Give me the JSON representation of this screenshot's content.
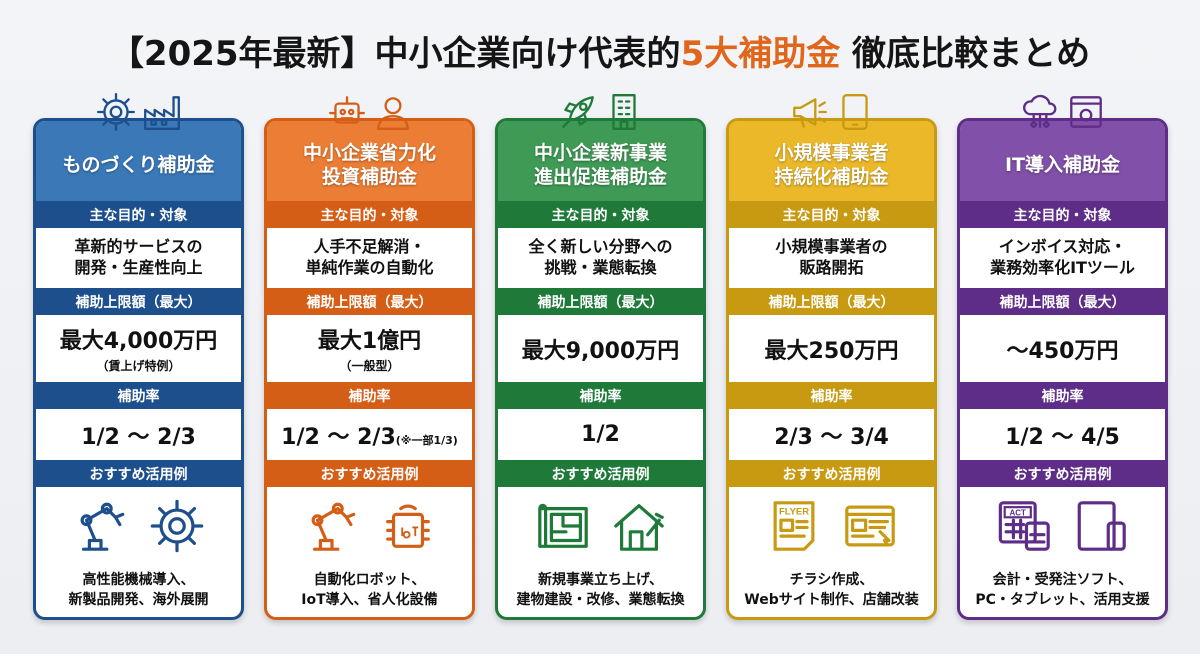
{
  "title": {
    "prefix": "【2025年最新】中小企業向け代表的",
    "highlight": "5大補助金",
    "suffix": " 徹底比較まとめ"
  },
  "colors": {
    "highlight": "#e0661c"
  },
  "section_labels": {
    "purpose": "主な目的・対象",
    "limit": "補助上限額（最大）",
    "rate": "補助率",
    "usage": "おすすめ活用例"
  },
  "cards": [
    {
      "name": "ものづくり補助金",
      "head_color": "#3a78b8",
      "band_color": "#1d4f8c",
      "top_icons": [
        "gear-wrench-icon",
        "factory-icon"
      ],
      "purpose": "革新的サービスの\n開発・生産性向上",
      "limit": "最大4,000万円",
      "limit_note": "（賃上げ特例）",
      "rate": "1/2 ～ 2/3",
      "rate_note": "",
      "usage_icons": [
        "robot-arm-icon",
        "gear-box-icon"
      ],
      "usage": "高性能機械導入、\n新製品開発、海外展開"
    },
    {
      "name": "中小企業省力化\n投資補助金",
      "head_color": "#ec7d34",
      "band_color": "#d55e17",
      "top_icons": [
        "robot-icon",
        "person-icon"
      ],
      "purpose": "人手不足解消・\n単純作業の自動化",
      "limit": "最大1億円",
      "limit_note": "（一般型）",
      "rate": "1/2 ～ 2/3",
      "rate_note": "(※一部1/3)",
      "usage_icons": [
        "conveyor-robot-icon",
        "iot-chip-icon"
      ],
      "usage": "自動化ロボット、\nIoT導入、省人化設備"
    },
    {
      "name": "中小企業新事業\n進出促進補助金",
      "head_color": "#3f9a55",
      "band_color": "#1f7a3a",
      "top_icons": [
        "rocket-icon",
        "building-icon"
      ],
      "purpose": "全く新しい分野への\n挑戦・業態転換",
      "limit": "最大9,000万円",
      "limit_note": "",
      "rate": "1/2",
      "rate_note": "",
      "usage_icons": [
        "blueprint-icon",
        "house-tools-icon"
      ],
      "usage": "新規事業立ち上げ、\n建物建設・改修、業態転換"
    },
    {
      "name": "小規模事業者\n持続化補助金",
      "head_color": "#ebb82a",
      "band_color": "#c89a12",
      "top_icons": [
        "megaphone-icon",
        "tablet-icon"
      ],
      "purpose": "小規模事業者の\n販路開拓",
      "limit": "最大250万円",
      "limit_note": "",
      "rate": "2/3 ～ 3/4",
      "rate_note": "",
      "usage_icons": [
        "flyer-icon",
        "website-icon"
      ],
      "usage_icon_label": "FLYER",
      "usage": "チラシ作成、\nWebサイト制作、店舗改装"
    },
    {
      "name": "IT導入補助金",
      "head_color": "#8150a8",
      "band_color": "#5e2d88",
      "top_icons": [
        "cloud-network-icon",
        "settings-window-icon"
      ],
      "purpose": "インボイス対応・\n業務効率化ITツール",
      "limit": "～450万円",
      "limit_note": "",
      "rate": "1/2 ～ 4/5",
      "rate_note": "",
      "usage_icons": [
        "accounting-calculator-icon",
        "tablet-phone-icon"
      ],
      "usage_icon_label": "ACT",
      "usage": "会計・受発注ソフト、\nPC・タブレット、活用支援"
    }
  ]
}
